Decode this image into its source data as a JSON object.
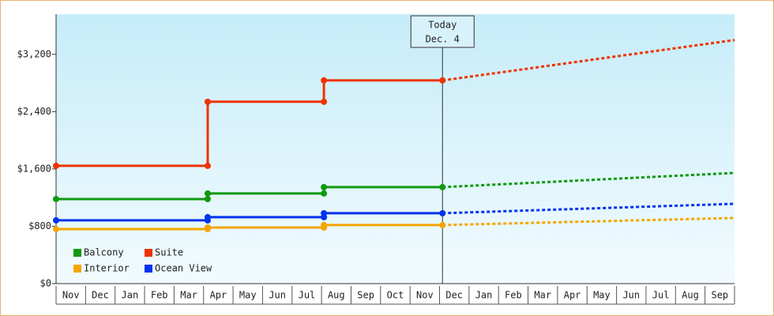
{
  "chart_data": {
    "type": "line",
    "categories": [
      "Nov",
      "Dec",
      "Jan",
      "Feb",
      "Mar",
      "Apr",
      "May",
      "Jun",
      "Jul",
      "Aug",
      "Sep",
      "Oct",
      "Nov",
      "Dec",
      "Jan",
      "Feb",
      "Mar",
      "Apr",
      "May",
      "Jun",
      "Jul",
      "Aug",
      "Sep"
    ],
    "x": [
      0,
      5.14,
      5.14,
      9.08,
      9.08,
      13.1,
      23
    ],
    "series": [
      {
        "name": "Balcony",
        "color": "#119911",
        "values": [
          1180,
          1180,
          1258,
          1258,
          1346,
          1346,
          1545
        ]
      },
      {
        "name": "Suite",
        "color": "#ee3300",
        "values": [
          1644,
          1644,
          2538,
          2538,
          2836,
          2836,
          3399
        ]
      },
      {
        "name": "Interior",
        "color": "#f5a500",
        "values": [
          761,
          761,
          783,
          783,
          817,
          817,
          916
        ]
      },
      {
        "name": "Ocean View",
        "color": "#0033ee",
        "values": [
          883,
          883,
          927,
          927,
          982,
          982,
          1114
        ]
      }
    ],
    "ylim": [
      0,
      3760
    ],
    "yticks": [
      {
        "value": 0,
        "label": "$0"
      },
      {
        "value": 800,
        "label": "$800"
      },
      {
        "value": 1600,
        "label": "$1,600"
      },
      {
        "value": 2400,
        "label": "$2,400"
      },
      {
        "value": 3200,
        "label": "$3,200"
      }
    ],
    "annotation": {
      "x": 13.1,
      "text": [
        "Today",
        "Dec. 4"
      ]
    },
    "legend": "lower left"
  }
}
